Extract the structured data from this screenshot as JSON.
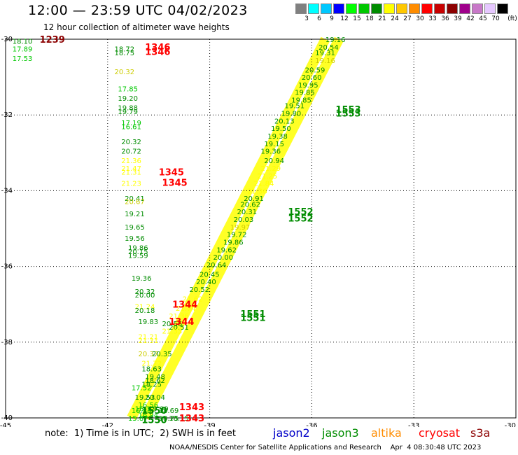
{
  "title": "12:00 — 23:59 UTC 04/02/2023",
  "subtitle": "12 hour collection of altimeter wave heights",
  "legend": {
    "unit": "(ft)",
    "bins": [
      {
        "label": "3",
        "color": "#808080"
      },
      {
        "label": "6",
        "color": "#00ffff"
      },
      {
        "label": "9",
        "color": "#00c8ff"
      },
      {
        "label": "12",
        "color": "#0000ff"
      },
      {
        "label": "15",
        "color": "#00ff00"
      },
      {
        "label": "18",
        "color": "#00c800"
      },
      {
        "label": "21",
        "color": "#008c00"
      },
      {
        "label": "24",
        "color": "#ffff00"
      },
      {
        "label": "27",
        "color": "#ffc800"
      },
      {
        "label": "30",
        "color": "#ff8c00"
      },
      {
        "label": "33",
        "color": "#ff0000"
      },
      {
        "label": "36",
        "color": "#c80000"
      },
      {
        "label": "39",
        "color": "#8c0000"
      },
      {
        "label": "42",
        "color": "#a0008c"
      },
      {
        "label": "45",
        "color": "#c878c8"
      },
      {
        "label": "70",
        "color": "#e6c8ff"
      },
      {
        "label": "",
        "color": "#000000"
      }
    ]
  },
  "note": "note:  1) Time is in UTC;  2) SWH is in feet",
  "satellites": [
    {
      "name": "jason2",
      "color": "#0000c8"
    },
    {
      "name": "jason3",
      "color": "#008c00"
    },
    {
      "name": "altika",
      "color": "#ff8c00"
    },
    {
      "name": "cryosat",
      "color": "#ff0000"
    },
    {
      "name": "s3a",
      "color": "#8c0000"
    }
  ],
  "footer": "NOAA/NESDIS Center for Satellite Applications and Research    Apr  4 08:30:48 UTC 2023",
  "chart_data": {
    "type": "scatter",
    "x_ticks": [
      -45,
      -42,
      -39,
      -36,
      -33,
      -30
    ],
    "y_ticks": [
      -30,
      -32,
      -34,
      -36,
      -38,
      -40
    ],
    "xlim": [
      -45,
      -30
    ],
    "ylim": [
      -40,
      -30
    ],
    "grid": true,
    "track_values": [
      {
        "x": -44.8,
        "y": -30.05,
        "v": "18.10",
        "c": "#008c00"
      },
      {
        "x": -44.8,
        "y": -30.25,
        "v": "17.89",
        "c": "#00c800"
      },
      {
        "x": -44.8,
        "y": -30.5,
        "v": "17.53",
        "c": "#00c800"
      },
      {
        "x": -41.8,
        "y": -30.25,
        "v": "18.72",
        "c": "#008c00"
      },
      {
        "x": -41.8,
        "y": -30.35,
        "v": "18.75",
        "c": "#008c00"
      },
      {
        "x": -41.8,
        "y": -30.85,
        "v": "20.32",
        "c": "#cccc00"
      },
      {
        "x": -41.7,
        "y": -31.3,
        "v": "17.85",
        "c": "#00c800"
      },
      {
        "x": -41.7,
        "y": -31.55,
        "v": "19.20",
        "c": "#008c00"
      },
      {
        "x": -41.7,
        "y": -31.8,
        "v": "19.88",
        "c": "#008c00"
      },
      {
        "x": -41.7,
        "y": -31.9,
        "v": "19.79",
        "c": "#008c00"
      },
      {
        "x": -41.6,
        "y": -32.2,
        "v": "17.19",
        "c": "#00c800"
      },
      {
        "x": -41.6,
        "y": -32.3,
        "v": "16.61",
        "c": "#00c800"
      },
      {
        "x": -41.6,
        "y": -32.7,
        "v": "20.32",
        "c": "#008c00"
      },
      {
        "x": -41.6,
        "y": -32.95,
        "v": "20.72",
        "c": "#008c00"
      },
      {
        "x": -41.6,
        "y": -33.2,
        "v": "21.36",
        "c": "#ffff00"
      },
      {
        "x": -41.6,
        "y": -33.4,
        "v": "21.47",
        "c": "#ffff00"
      },
      {
        "x": -41.6,
        "y": -33.5,
        "v": "21.31",
        "c": "#ffff00"
      },
      {
        "x": -41.6,
        "y": -33.8,
        "v": "21.23",
        "c": "#ffff00"
      },
      {
        "x": -41.5,
        "y": -34.2,
        "v": "20.41",
        "c": "#008c00"
      },
      {
        "x": -41.5,
        "y": -34.28,
        "v": "20.67",
        "c": "#cccc00"
      },
      {
        "x": -41.5,
        "y": -34.6,
        "v": "19.21",
        "c": "#008c00"
      },
      {
        "x": -41.5,
        "y": -34.95,
        "v": "19.65",
        "c": "#008c00"
      },
      {
        "x": -41.5,
        "y": -35.25,
        "v": "19.56",
        "c": "#008c00"
      },
      {
        "x": -41.4,
        "y": -35.5,
        "v": "19.86",
        "c": "#008c00"
      },
      {
        "x": -41.4,
        "y": -35.6,
        "v": "20.15",
        "c": "#008c00"
      },
      {
        "x": -41.4,
        "y": -35.7,
        "v": "19.59",
        "c": "#008c00"
      },
      {
        "x": -41.3,
        "y": -36.3,
        "v": "19.36",
        "c": "#008c00"
      },
      {
        "x": -41.2,
        "y": -36.65,
        "v": "20.32",
        "c": "#008c00"
      },
      {
        "x": -41.2,
        "y": -36.75,
        "v": "20.00",
        "c": "#008c00"
      },
      {
        "x": -41.2,
        "y": -37.05,
        "v": "21.24",
        "c": "#ffff00"
      },
      {
        "x": -41.2,
        "y": -37.15,
        "v": "20.18",
        "c": "#008c00"
      },
      {
        "x": -41.1,
        "y": -37.45,
        "v": "19.83",
        "c": "#008c00"
      },
      {
        "x": -41.1,
        "y": -37.85,
        "v": "21.21",
        "c": "#ffff00"
      },
      {
        "x": -41.1,
        "y": -37.95,
        "v": "21.31",
        "c": "#ffff00"
      },
      {
        "x": -41.1,
        "y": -38.3,
        "v": "20.37",
        "c": "#cccc00"
      },
      {
        "x": -40.7,
        "y": -38.3,
        "v": "20.35",
        "c": "#008c00"
      },
      {
        "x": -41.0,
        "y": -38.55,
        "v": "21.72",
        "c": "#ffff00"
      },
      {
        "x": -41.0,
        "y": -38.7,
        "v": "18.63",
        "c": "#008c00"
      },
      {
        "x": -40.9,
        "y": -38.9,
        "v": "19.48",
        "c": "#008c00"
      },
      {
        "x": -40.9,
        "y": -39.0,
        "v": "18.62",
        "c": "#008c00"
      },
      {
        "x": -41.0,
        "y": -39.1,
        "v": "18.25",
        "c": "#008c00"
      },
      {
        "x": -41.3,
        "y": -39.2,
        "v": "17.52",
        "c": "#00c800"
      },
      {
        "x": -41.2,
        "y": -39.45,
        "v": "19.53",
        "c": "#008c00"
      },
      {
        "x": -40.9,
        "y": -39.45,
        "v": "20.04",
        "c": "#008c00"
      },
      {
        "x": -41.1,
        "y": -39.65,
        "v": "16.56",
        "c": "#00c800"
      },
      {
        "x": -41.2,
        "y": -39.75,
        "v": "16.12",
        "c": "#00c800"
      },
      {
        "x": -41.3,
        "y": -39.8,
        "v": "16.83",
        "c": "#00c800"
      },
      {
        "x": -41.1,
        "y": -39.92,
        "v": "16.94",
        "c": "#00c800"
      },
      {
        "x": -40.8,
        "y": -39.75,
        "v": "19.99",
        "c": "#008c00"
      },
      {
        "x": -40.5,
        "y": -39.8,
        "v": "18.69",
        "c": "#008c00"
      },
      {
        "x": -41.4,
        "y": -40.0,
        "v": "15.87",
        "c": "#00c800"
      },
      {
        "x": -40.5,
        "y": -40.0,
        "v": "18.75",
        "c": "#008c00"
      },
      {
        "x": -40.2,
        "y": -40.0,
        "v": "18.15",
        "c": "#008c00"
      },
      {
        "x": -40.2,
        "y": -37.6,
        "v": "20.51",
        "c": "#008c00"
      },
      {
        "x": -40.4,
        "y": -37.5,
        "v": "20.56",
        "c": "#008c00"
      },
      {
        "x": -40.4,
        "y": -37.7,
        "v": "21.33",
        "c": "#ffff00"
      },
      {
        "x": -40.2,
        "y": -37.3,
        "v": "21.36",
        "c": "#ffff00"
      },
      {
        "x": -40.0,
        "y": -37.1,
        "v": "21.74",
        "c": "#ffff00"
      },
      {
        "x": -39.8,
        "y": -36.85,
        "v": "21.62",
        "c": "#ffff00"
      },
      {
        "x": -39.6,
        "y": -36.6,
        "v": "20.52",
        "c": "#008c00"
      },
      {
        "x": -39.4,
        "y": -36.4,
        "v": "20.40",
        "c": "#008c00"
      },
      {
        "x": -39.3,
        "y": -36.2,
        "v": "20.45",
        "c": "#008c00"
      },
      {
        "x": -39.1,
        "y": -35.95,
        "v": "20.64",
        "c": "#008c00"
      },
      {
        "x": -38.9,
        "y": -35.75,
        "v": "20.00",
        "c": "#008c00"
      },
      {
        "x": -38.8,
        "y": -35.55,
        "v": "19.62",
        "c": "#008c00"
      },
      {
        "x": -38.6,
        "y": -35.35,
        "v": "19.86",
        "c": "#008c00"
      },
      {
        "x": -38.5,
        "y": -35.15,
        "v": "19.72",
        "c": "#008c00"
      },
      {
        "x": -38.4,
        "y": -34.95,
        "v": "19.97",
        "c": "#cccc00"
      },
      {
        "x": -38.3,
        "y": -34.75,
        "v": "20.03",
        "c": "#008c00"
      },
      {
        "x": -38.2,
        "y": -34.55,
        "v": "20.31",
        "c": "#008c00"
      },
      {
        "x": -38.1,
        "y": -34.35,
        "v": "20.62",
        "c": "#008c00"
      },
      {
        "x": -38.0,
        "y": -34.2,
        "v": "20.91",
        "c": "#008c00"
      },
      {
        "x": -37.9,
        "y": -34.0,
        "v": "21.36",
        "c": "#ffff00"
      },
      {
        "x": -37.7,
        "y": -33.8,
        "v": "21.84",
        "c": "#ffff00"
      },
      {
        "x": -37.6,
        "y": -33.6,
        "v": "21.25",
        "c": "#ffff00"
      },
      {
        "x": -37.5,
        "y": -33.4,
        "v": "21.29",
        "c": "#ffff00"
      },
      {
        "x": -37.4,
        "y": -33.2,
        "v": "20.94",
        "c": "#008c00"
      },
      {
        "x": -37.5,
        "y": -32.95,
        "v": "19.36",
        "c": "#008c00"
      },
      {
        "x": -37.4,
        "y": -32.75,
        "v": "19.15",
        "c": "#008c00"
      },
      {
        "x": -37.3,
        "y": -32.55,
        "v": "19.38",
        "c": "#008c00"
      },
      {
        "x": -37.2,
        "y": -32.35,
        "v": "19.50",
        "c": "#008c00"
      },
      {
        "x": -37.1,
        "y": -32.15,
        "v": "20.13",
        "c": "#008c00"
      },
      {
        "x": -36.9,
        "y": -31.95,
        "v": "19.80",
        "c": "#008c00"
      },
      {
        "x": -36.8,
        "y": -31.75,
        "v": "19.51",
        "c": "#008c00"
      },
      {
        "x": -36.6,
        "y": -31.6,
        "v": "19.85",
        "c": "#008c00"
      },
      {
        "x": -36.5,
        "y": -31.4,
        "v": "19.85",
        "c": "#008c00"
      },
      {
        "x": -36.4,
        "y": -31.2,
        "v": "19.95",
        "c": "#008c00"
      },
      {
        "x": -36.3,
        "y": -31.0,
        "v": "20.60",
        "c": "#008c00"
      },
      {
        "x": -36.2,
        "y": -30.8,
        "v": "20.59",
        "c": "#008c00"
      },
      {
        "x": -35.9,
        "y": -30.55,
        "v": "19.16",
        "c": "#cccc00"
      },
      {
        "x": -35.9,
        "y": -30.35,
        "v": "19.31",
        "c": "#008c00"
      },
      {
        "x": -35.8,
        "y": -30.2,
        "v": "20.54",
        "c": "#008c00"
      },
      {
        "x": -35.6,
        "y": -30.0,
        "v": "19.16",
        "c": "#008c00"
      }
    ],
    "pass_times": [
      {
        "x": -44.0,
        "y": -30.0,
        "v": "1239",
        "c": "#8c0000"
      },
      {
        "x": -40.9,
        "y": -30.2,
        "v": "1346",
        "c": "#ff0000"
      },
      {
        "x": -40.9,
        "y": -30.32,
        "v": "1346",
        "c": "#ff0000"
      },
      {
        "x": -40.5,
        "y": -33.5,
        "v": "1345",
        "c": "#ff0000"
      },
      {
        "x": -40.4,
        "y": -33.78,
        "v": "1345",
        "c": "#ff0000"
      },
      {
        "x": -40.1,
        "y": -37.0,
        "v": "1344",
        "c": "#ff0000"
      },
      {
        "x": -40.2,
        "y": -37.45,
        "v": "1344",
        "c": "#ff0000"
      },
      {
        "x": -39.9,
        "y": -39.7,
        "v": "1343",
        "c": "#ff0000"
      },
      {
        "x": -39.9,
        "y": -40.0,
        "v": "1343",
        "c": "#ff0000"
      },
      {
        "x": -41.0,
        "y": -39.8,
        "v": "1550",
        "c": "#008c00"
      },
      {
        "x": -41.0,
        "y": -40.05,
        "v": "1550",
        "c": "#008c00"
      },
      {
        "x": -38.1,
        "y": -37.25,
        "v": "1551",
        "c": "#008c00"
      },
      {
        "x": -38.1,
        "y": -37.35,
        "v": "1551",
        "c": "#008c00"
      },
      {
        "x": -36.7,
        "y": -34.55,
        "v": "1552",
        "c": "#008c00"
      },
      {
        "x": -36.7,
        "y": -34.72,
        "v": "1552",
        "c": "#008c00"
      },
      {
        "x": -35.3,
        "y": -31.85,
        "v": "1553",
        "c": "#008c00"
      },
      {
        "x": -35.3,
        "y": -31.95,
        "v": "1553",
        "c": "#008c00"
      }
    ],
    "yellow_band": [
      {
        "x1": -41.3,
        "y1": -40.0,
        "x2": -35.6,
        "y2": -30.0
      },
      {
        "x1": -40.9,
        "y1": -40.0,
        "x2": -35.2,
        "y2": -30.0
      }
    ]
  }
}
